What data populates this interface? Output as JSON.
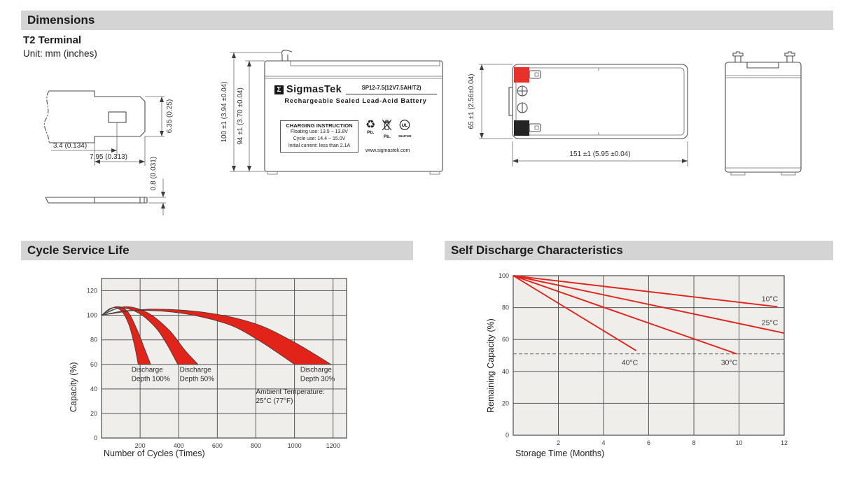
{
  "page": {
    "section_dimensions": "Dimensions",
    "terminal_type": "T2 Terminal",
    "unit_note": "Unit: mm (inches)"
  },
  "colors": {
    "accent_red": "#e2231a",
    "header_bar_gray": "#d4d4d4",
    "grid_gray": "#58585a",
    "plot_background": "#efeeeb"
  },
  "drawings": {
    "terminal_detail": {
      "dim_hole_offset": "3.4 (0.134)",
      "dim_tab_length": "7.95 (0.313)",
      "dim_tab_width": "6.35 (0.25)",
      "dim_thickness": "0.8 (0.031)"
    },
    "front_view": {
      "dim_total_height": "100 ±1 (3.94 ±0.04)",
      "dim_body_height": "94 ±1 (3.70 ±0.04)",
      "label": {
        "sigma": "Σ",
        "brand": "SigmasTek",
        "model": "SP12-7.5(12V7.5AH/T2)",
        "subtitle": "Rechargeable Sealed Lead-Acid Battery",
        "charging_title": "CHARGING INSTRUCTION",
        "charging_lines": [
          "Floating use: 13.5 ~ 13.8V",
          "Cycle use: 14.4 ~ 15.0V",
          "Initial current: less than 2.1A"
        ],
        "recycle_pb": "Pb.",
        "bin_pb": "Pb.",
        "ul_text": "UL",
        "ul_code": "MH47929",
        "website": "www.sigmastek.com"
      }
    },
    "top_view": {
      "dim_height": "65 ±1 (2.56±0.04)",
      "dim_width": "151 ±1 (5.95 ±0.04)"
    }
  },
  "chart_data": [
    {
      "type": "area",
      "title": "Cycle Service Life",
      "xlabel": "Number of Cycles (Times)",
      "ylabel": "Capacity (%)",
      "xlim": [
        0,
        1270
      ],
      "ylim": [
        0,
        130
      ],
      "x_ticks": [
        200,
        400,
        600,
        800,
        1000,
        1200
      ],
      "y_ticks": [
        0,
        20,
        40,
        60,
        80,
        100,
        120
      ],
      "grid": true,
      "legend_position": "none",
      "band_color": "#e2231a",
      "bands": [
        {
          "name": "Discharge Depth 100%",
          "left_edge": [
            [
              0,
              100
            ],
            [
              50,
              106
            ],
            [
              100,
              104
            ],
            [
              140,
              93
            ],
            [
              170,
              76
            ],
            [
              190,
              60
            ]
          ],
          "right_edge": [
            [
              0,
              100
            ],
            [
              75,
              107
            ],
            [
              135,
              103
            ],
            [
              185,
              88
            ],
            [
              225,
              72
            ],
            [
              255,
              60
            ]
          ]
        },
        {
          "name": "Discharge Depth 50%",
          "left_edge": [
            [
              0,
              100
            ],
            [
              90,
              106
            ],
            [
              190,
              102
            ],
            [
              280,
              90
            ],
            [
              340,
              76
            ],
            [
              395,
              60
            ]
          ],
          "right_edge": [
            [
              0,
              100
            ],
            [
              120,
              107
            ],
            [
              240,
              102
            ],
            [
              350,
              88
            ],
            [
              430,
              72
            ],
            [
              500,
              60
            ]
          ]
        },
        {
          "name": "Discharge Depth 30%",
          "left_edge": [
            [
              0,
              100
            ],
            [
              150,
              104
            ],
            [
              400,
              102
            ],
            [
              650,
              93
            ],
            [
              820,
              79
            ],
            [
              1000,
              60
            ]
          ],
          "right_edge": [
            [
              0,
              100
            ],
            [
              250,
              105
            ],
            [
              550,
              102
            ],
            [
              800,
              93
            ],
            [
              1000,
              78
            ],
            [
              1190,
              60
            ]
          ]
        }
      ],
      "annotations": [
        {
          "lines": [
            "Discharge",
            "Depth 100%"
          ],
          "x": 155,
          "y": 54,
          "align": "start"
        },
        {
          "lines": [
            "Discharge",
            "Depth 50%"
          ],
          "x": 405,
          "y": 54,
          "align": "start"
        },
        {
          "lines": [
            "Discharge",
            "Depth 30%"
          ],
          "x": 1030,
          "y": 54,
          "align": "start"
        },
        {
          "lines": [
            "Ambient Temperature:",
            "25°C (77°F)"
          ],
          "x": 800,
          "y": 36,
          "align": "start"
        }
      ]
    },
    {
      "type": "line",
      "title": "Self Discharge Characteristics",
      "xlabel": "Storage Time (Months)",
      "ylabel": "Remaining Capacity (%)",
      "xlim": [
        0,
        12
      ],
      "ylim": [
        0,
        100
      ],
      "x_ticks": [
        2,
        4,
        6,
        8,
        10,
        12
      ],
      "y_ticks": [
        0,
        20,
        40,
        60,
        80,
        100
      ],
      "grid": true,
      "legend_position": "inline-labels",
      "line_color": "#e2231a",
      "reference_line": {
        "y": 51,
        "style": "dashed"
      },
      "series": [
        {
          "name": "10°C",
          "points": [
            [
              0,
              100
            ],
            [
              11.7,
              80.5
            ]
          ],
          "label_x": 11.0,
          "label_y": 84
        },
        {
          "name": "25°C",
          "points": [
            [
              0,
              100
            ],
            [
              12,
              64
            ]
          ],
          "label_x": 11.0,
          "label_y": 69
        },
        {
          "name": "30°C",
          "points": [
            [
              0,
              100
            ],
            [
              9.9,
              51
            ]
          ],
          "label_x": 9.2,
          "label_y": 44
        },
        {
          "name": "40°C",
          "points": [
            [
              0,
              100
            ],
            [
              5.45,
              53
            ]
          ],
          "label_x": 4.8,
          "label_y": 44
        }
      ]
    }
  ]
}
